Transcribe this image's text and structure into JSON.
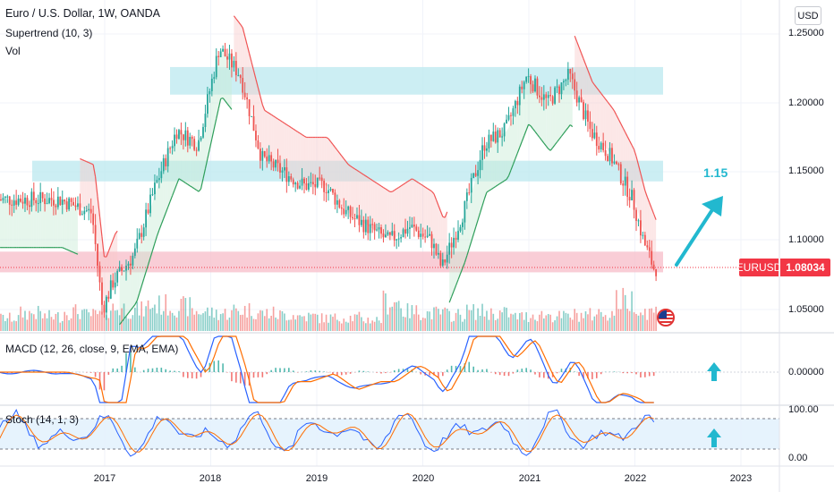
{
  "header": {
    "title": "Euro / U.S. Dollar, 1W, OANDA",
    "indicator_supertrend": "Supertrend (10, 3)",
    "indicator_vol": "Vol",
    "indicator_macd": "MACD (12, 26, close, 9, EMA, EMA)",
    "indicator_stoch": "Stoch (14, 1, 3)",
    "currency_button": "USD"
  },
  "price_tag": {
    "symbol": "EURUSD",
    "value": "1.08034"
  },
  "annotation": {
    "target_label": "1.15"
  },
  "icons": [
    "arrow-up-icon",
    "us-flag-icon"
  ],
  "colors": {
    "bull": "#26a69a",
    "bear": "#ef5350",
    "supertrend_up": "#2e9e5a",
    "supertrend_down": "#f05454",
    "zone_blue": "#bfeaf0",
    "zone_pink": "#f7c0cc",
    "macd_line": "#2962ff",
    "signal_line": "#ff6d00",
    "stoch_k": "#2962ff",
    "stoch_d": "#ff6d00",
    "accent_arrow": "#22b8cf",
    "price_tag": "#f23645"
  },
  "chart_data": [
    {
      "type": "line",
      "title": "Euro / U.S. Dollar, 1W, OANDA",
      "x_ticks": [
        "2017",
        "2018",
        "2019",
        "2020",
        "2021",
        "2022",
        "2023"
      ],
      "y_ticks": [
        "1.25000",
        "1.20000",
        "1.15000",
        "1.10000",
        "1.05000"
      ],
      "ylim": [
        1.04,
        1.265
      ],
      "x_key": [
        "2016.6",
        "2016.9",
        "2017.0",
        "2017.1",
        "2017.3",
        "2017.5",
        "2017.7",
        "2017.9",
        "2018.1",
        "2018.3",
        "2018.5",
        "2018.7",
        "2018.9",
        "2019.1",
        "2019.3",
        "2019.5",
        "2019.7",
        "2019.9",
        "2020.1",
        "2020.2",
        "2020.4",
        "2020.6",
        "2020.8",
        "2021.0",
        "2021.2",
        "2021.4",
        "2021.6",
        "2021.8",
        "2022.0",
        "2022.1",
        "2022.2"
      ],
      "close": [
        1.13,
        1.12,
        1.05,
        1.07,
        1.09,
        1.14,
        1.18,
        1.17,
        1.24,
        1.22,
        1.16,
        1.15,
        1.14,
        1.14,
        1.12,
        1.11,
        1.1,
        1.11,
        1.1,
        1.08,
        1.12,
        1.17,
        1.18,
        1.22,
        1.2,
        1.22,
        1.18,
        1.16,
        1.13,
        1.1,
        1.08
      ],
      "series": [
        {
          "name": "Supertrend (10, 3)"
        }
      ],
      "zones": [
        {
          "low": 1.206,
          "high": 1.226,
          "color": "blue"
        },
        {
          "low": 1.143,
          "high": 1.158,
          "color": "blue"
        },
        {
          "low": 1.077,
          "high": 1.092,
          "color": "pink"
        }
      ],
      "last_price": 1.08034,
      "target": 1.15
    },
    {
      "type": "bar",
      "title": "Vol",
      "values": [
        0.4,
        0.55,
        0.45,
        0.6,
        0.5,
        0.7,
        0.65,
        0.8,
        0.75,
        0.6,
        0.55,
        0.65,
        0.55,
        0.5,
        0.45,
        0.4,
        0.42,
        0.35,
        0.9,
        0.6,
        0.55,
        0.5,
        0.6,
        0.55,
        0.45,
        0.5,
        0.45,
        0.5,
        0.55,
        0.95,
        0.6
      ]
    },
    {
      "type": "line",
      "title": "MACD (12, 26, close, 9, EMA, EMA)",
      "y_ticks": [
        "0.00000"
      ],
      "series": [
        {
          "name": "MACD"
        },
        {
          "name": "Signal"
        },
        {
          "name": "Histogram"
        }
      ]
    },
    {
      "type": "line",
      "title": "Stoch (14, 1, 3)",
      "y_ticks": [
        "100.00",
        "0.00"
      ],
      "ylim": [
        0,
        100
      ],
      "bands": [
        20,
        80
      ],
      "series": [
        {
          "name": "%K"
        },
        {
          "name": "%D"
        }
      ]
    }
  ]
}
